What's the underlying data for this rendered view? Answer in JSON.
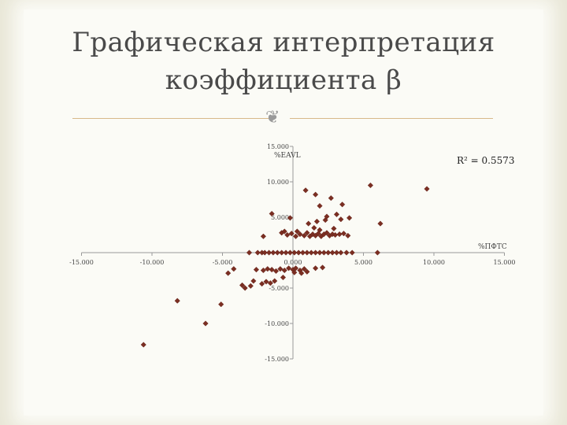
{
  "slide": {
    "title_line1": "Графическая интерпретация",
    "title_line2": "коэффициента β",
    "ornament_icon": "curly-flourish-icon",
    "background": "#e8e6d6",
    "accent_line_color": "#d8b98a"
  },
  "chart_data": {
    "type": "scatter",
    "title": "",
    "xlabel": "%ПФТС",
    "ylabel": "%EAVL",
    "annotation": "R² = 0.5573",
    "xlim": [
      -15,
      15
    ],
    "ylim": [
      -15,
      15
    ],
    "xticks": [
      -15,
      -10,
      -5,
      0,
      5,
      10,
      15
    ],
    "yticks": [
      15,
      10,
      5,
      -5,
      -10,
      -15
    ],
    "xtick_labels": [
      "-15.000",
      "-10.000",
      "-5.000",
      "0.000",
      "5.000",
      "10.000",
      "15.000"
    ],
    "ytick_labels": [
      "15.000",
      "10.000",
      "5.000",
      "-5.000",
      "-10.000",
      "-15.000"
    ],
    "marker_color": "#7b2e22",
    "grid": false,
    "points": [
      [
        -10.6,
        -13.0
      ],
      [
        -8.2,
        -6.8
      ],
      [
        -6.2,
        -10.0
      ],
      [
        -5.1,
        -7.3
      ],
      [
        -4.6,
        -2.9
      ],
      [
        -4.2,
        -2.3
      ],
      [
        -3.6,
        -4.6
      ],
      [
        -3.4,
        -5.0
      ],
      [
        -3.0,
        -4.7
      ],
      [
        -2.6,
        -2.4
      ],
      [
        -2.1,
        -2.5
      ],
      [
        -1.8,
        -2.3
      ],
      [
        -1.5,
        -2.4
      ],
      [
        -1.2,
        -2.6
      ],
      [
        -0.9,
        -2.3
      ],
      [
        -0.6,
        -2.5
      ],
      [
        -0.3,
        -2.2
      ],
      [
        0.0,
        -2.4
      ],
      [
        0.2,
        -2.2
      ],
      [
        0.5,
        -2.5
      ],
      [
        0.8,
        -2.3
      ],
      [
        -2.2,
        -4.4
      ],
      [
        -1.9,
        -4.1
      ],
      [
        -1.6,
        -4.3
      ],
      [
        -1.3,
        -4.0
      ],
      [
        -0.7,
        -3.5
      ],
      [
        0.1,
        -2.8
      ],
      [
        0.6,
        -2.9
      ],
      [
        1.0,
        -2.7
      ],
      [
        1.6,
        -2.2
      ],
      [
        2.1,
        -2.1
      ],
      [
        -2.8,
        -4.0
      ],
      [
        -3.1,
        0.0
      ],
      [
        -2.5,
        0.0
      ],
      [
        -2.2,
        0.0
      ],
      [
        -2.0,
        0.0
      ],
      [
        -1.7,
        0.0
      ],
      [
        -1.4,
        0.0
      ],
      [
        -1.1,
        0.0
      ],
      [
        -0.8,
        0.0
      ],
      [
        -0.5,
        0.0
      ],
      [
        -0.2,
        0.0
      ],
      [
        0.1,
        0.0
      ],
      [
        0.4,
        0.0
      ],
      [
        0.7,
        0.0
      ],
      [
        1.0,
        0.0
      ],
      [
        1.3,
        0.0
      ],
      [
        1.6,
        0.0
      ],
      [
        1.9,
        0.0
      ],
      [
        2.2,
        0.0
      ],
      [
        2.5,
        0.0
      ],
      [
        2.8,
        0.0
      ],
      [
        3.1,
        0.0
      ],
      [
        3.4,
        0.0
      ],
      [
        3.8,
        0.0
      ],
      [
        4.2,
        0.0
      ],
      [
        6.0,
        0.0
      ],
      [
        -0.4,
        2.5
      ],
      [
        -0.1,
        2.7
      ],
      [
        0.2,
        2.3
      ],
      [
        0.5,
        2.6
      ],
      [
        0.8,
        2.4
      ],
      [
        1.0,
        2.8
      ],
      [
        1.2,
        2.3
      ],
      [
        1.4,
        2.6
      ],
      [
        1.6,
        2.4
      ],
      [
        1.8,
        2.7
      ],
      [
        2.0,
        2.3
      ],
      [
        2.2,
        2.6
      ],
      [
        2.4,
        2.8
      ],
      [
        2.6,
        2.4
      ],
      [
        2.8,
        2.6
      ],
      [
        3.0,
        2.5
      ],
      [
        3.3,
        2.6
      ],
      [
        3.6,
        2.7
      ],
      [
        3.9,
        2.4
      ],
      [
        -0.8,
        2.8
      ],
      [
        -2.1,
        2.3
      ],
      [
        -0.6,
        3.0
      ],
      [
        0.3,
        3.0
      ],
      [
        1.9,
        3.2
      ],
      [
        2.9,
        3.4
      ],
      [
        1.5,
        3.5
      ],
      [
        1.7,
        4.4
      ],
      [
        2.3,
        4.6
      ],
      [
        3.4,
        4.7
      ],
      [
        4.0,
        4.9
      ],
      [
        2.4,
        5.1
      ],
      [
        3.1,
        5.4
      ],
      [
        -1.5,
        5.5
      ],
      [
        -0.2,
        4.9
      ],
      [
        1.1,
        4.1
      ],
      [
        1.9,
        6.6
      ],
      [
        3.5,
        6.8
      ],
      [
        2.7,
        7.7
      ],
      [
        1.6,
        8.2
      ],
      [
        0.9,
        8.8
      ],
      [
        6.2,
        4.1
      ],
      [
        5.5,
        9.5
      ],
      [
        9.5,
        9.0
      ]
    ]
  }
}
